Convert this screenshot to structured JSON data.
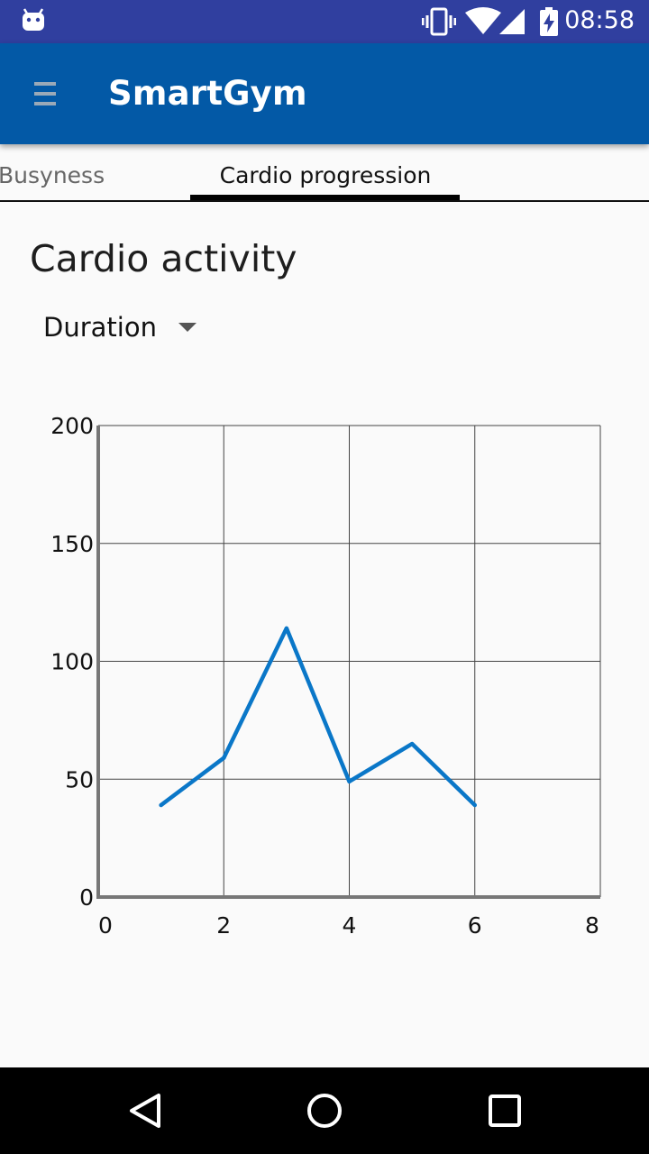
{
  "status_bar": {
    "time": "08:58",
    "icons": [
      "android-icon",
      "vibrate-icon",
      "wifi-icon",
      "signal-icon",
      "battery-charging-icon"
    ]
  },
  "app_bar": {
    "title": "SmartGym",
    "color": "#0359a6"
  },
  "tabs": [
    {
      "label": "Busyness",
      "selected": false
    },
    {
      "label": "Cardio progression",
      "selected": true
    }
  ],
  "content": {
    "heading": "Cardio activity",
    "metric_dropdown": {
      "selected": "Duration"
    }
  },
  "chart_data": {
    "type": "line",
    "x": [
      1,
      2,
      3,
      4,
      5,
      6
    ],
    "series": [
      {
        "values": [
          39,
          59,
          114,
          49,
          65,
          39
        ],
        "color": "#0a77c8"
      }
    ],
    "xlim": [
      0,
      8
    ],
    "ylim": [
      0,
      200
    ],
    "xticks": [
      0,
      2,
      4,
      6,
      8
    ],
    "yticks": [
      0,
      50,
      100,
      150,
      200
    ],
    "grid": true
  },
  "nav_bar": {
    "buttons": [
      "back-icon",
      "home-icon",
      "recents-icon"
    ]
  }
}
